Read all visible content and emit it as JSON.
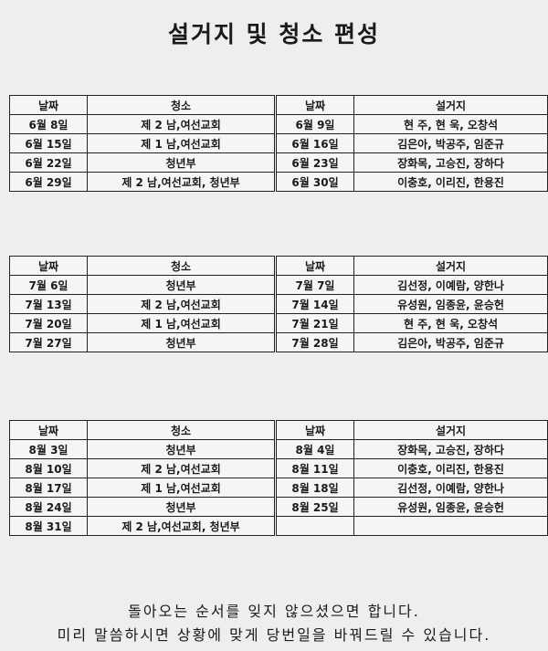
{
  "title": "설거지 및 청소 편성",
  "headers": [
    "날짜",
    "청소",
    "날짜",
    "설거지"
  ],
  "tables": [
    {
      "rows": [
        [
          "6월 8일",
          "제 2 남,여선교회",
          "6월 9일",
          "현 주, 현 욱, 오창석"
        ],
        [
          "6월 15일",
          "제 1 남,여선교회",
          "6월 16일",
          "김은아, 박공주, 임준규"
        ],
        [
          "6월 22일",
          "청년부",
          "6월 23일",
          "장화목, 고승진, 장하다"
        ],
        [
          "6월 29일",
          "제 2 남,여선교회, 청년부",
          "6월 30일",
          "이충호, 이리진, 한용진"
        ]
      ]
    },
    {
      "rows": [
        [
          "7월 6일",
          "청년부",
          "7월 7일",
          "김선정, 이예람, 양한나"
        ],
        [
          "7월 13일",
          "제 2 남,여선교회",
          "7월 14일",
          "유성원, 임종윤, 윤승헌"
        ],
        [
          "7월 20일",
          "제 1 남,여선교회",
          "7월 21일",
          "현 주, 현 욱, 오창석"
        ],
        [
          "7월 27일",
          "청년부",
          "7월 28일",
          "김은아, 박공주, 임준규"
        ]
      ]
    },
    {
      "rows": [
        [
          "8월 3일",
          "청년부",
          "8월 4일",
          "장화목, 고승진, 장하다"
        ],
        [
          "8월 10일",
          "제 2 남,여선교회",
          "8월 11일",
          "이충호, 이리진, 한용진"
        ],
        [
          "8월 17일",
          "제 1 남,여선교회",
          "8월 18일",
          "김선정, 이예람, 양한나"
        ],
        [
          "8월 24일",
          "청년부",
          "8월 25일",
          "유성원, 임종윤, 윤승헌"
        ],
        [
          "8월 31일",
          "제 2 남,여선교회, 청년부",
          "",
          ""
        ]
      ]
    }
  ],
  "footer": {
    "line1": "돌아오는 순서를 잊지 않으셨으면 합니다.",
    "line2": "미리 말씀하시면 상황에 맞게 당번일을 바꿔드릴 수 있습니다."
  }
}
